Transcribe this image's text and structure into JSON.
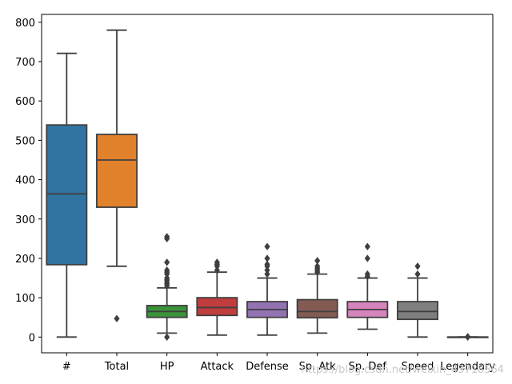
{
  "chart_data": {
    "type": "box",
    "title": "",
    "xlabel": "",
    "ylabel": "",
    "ylim": [
      -40,
      820
    ],
    "yticks": [
      0,
      100,
      200,
      300,
      400,
      500,
      600,
      700,
      800
    ],
    "grid": false,
    "categories": [
      "#",
      "Total",
      "HP",
      "Attack",
      "Defense",
      "Sp. Atk",
      "Sp. Def",
      "Speed",
      "Legendary"
    ],
    "boxes": [
      {
        "name": "#",
        "color": "#3274a1",
        "q1": 184,
        "median": 364,
        "q3": 539,
        "whisker_low": 0,
        "whisker_high": 721,
        "outliers": []
      },
      {
        "name": "Total",
        "color": "#e1812c",
        "q1": 330,
        "median": 450,
        "q3": 515,
        "whisker_low": 180,
        "whisker_high": 780,
        "outliers": [
          47
        ]
      },
      {
        "name": "HP",
        "color": "#3a923a",
        "q1": 50,
        "median": 65,
        "q3": 80,
        "whisker_low": 10,
        "whisker_high": 125,
        "outliers": [
          0,
          130,
          135,
          140,
          145,
          150,
          160,
          165,
          170,
          190,
          250,
          255
        ]
      },
      {
        "name": "Attack",
        "color": "#c03d3e",
        "q1": 55,
        "median": 75,
        "q3": 100,
        "whisker_low": 5,
        "whisker_high": 165,
        "outliers": [
          170,
          180,
          185,
          190
        ]
      },
      {
        "name": "Defense",
        "color": "#9372b2",
        "q1": 50,
        "median": 70,
        "q3": 90,
        "whisker_low": 5,
        "whisker_high": 150,
        "outliers": [
          160,
          170,
          180,
          185,
          200,
          230
        ]
      },
      {
        "name": "Sp. Atk",
        "color": "#845b53",
        "q1": 49,
        "median": 65,
        "q3": 95,
        "whisker_low": 10,
        "whisker_high": 160,
        "outliers": [
          165,
          170,
          175,
          180,
          194
        ]
      },
      {
        "name": "Sp. Def",
        "color": "#d684bd",
        "q1": 50,
        "median": 70,
        "q3": 90,
        "whisker_low": 20,
        "whisker_high": 150,
        "outliers": [
          154,
          160,
          200,
          230
        ]
      },
      {
        "name": "Speed",
        "color": "#7f7f7f",
        "q1": 45,
        "median": 65,
        "q3": 90,
        "whisker_low": 0,
        "whisker_high": 150,
        "outliers": [
          160,
          180
        ]
      },
      {
        "name": "Legendary",
        "color": "#a9aa35",
        "q1": 0,
        "median": 0,
        "q3": 0,
        "whisker_low": 0,
        "whisker_high": 0,
        "outliers": [
          0,
          1
        ]
      }
    ],
    "watermark": "https://blog.csdn.net/weixin_43718564"
  }
}
